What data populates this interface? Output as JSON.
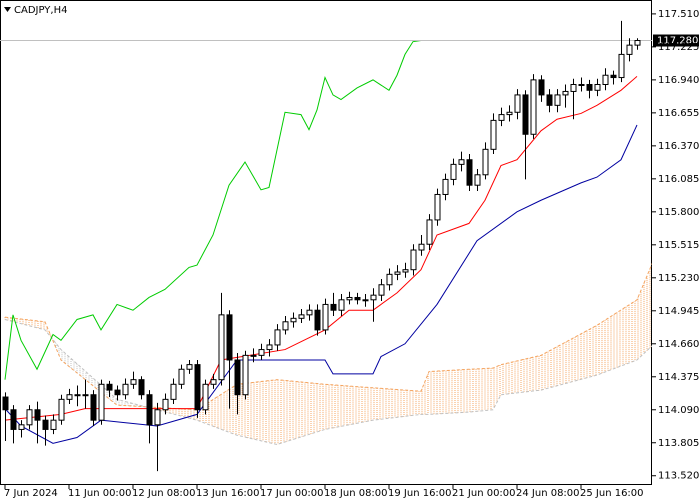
{
  "chart_data": {
    "type": "candlestick",
    "title": "CADJPY,H4",
    "categories": [
      "7 Jun 2024",
      null,
      null,
      null,
      null,
      null,
      null,
      null,
      "11 Jun 00:00",
      null,
      null,
      null,
      null,
      null,
      null,
      null,
      "12 Jun 08:00",
      null,
      null,
      null,
      null,
      null,
      null,
      null,
      "13 Jun 16:00",
      null,
      null,
      null,
      null,
      null,
      null,
      null,
      "17 Jun 00:00",
      null,
      null,
      null,
      null,
      null,
      null,
      null,
      "18 Jun 08:00",
      null,
      null,
      null,
      null,
      null,
      null,
      null,
      "19 Jun 16:00",
      null,
      null,
      null,
      null,
      null,
      null,
      null,
      "21 Jun 00:00",
      null,
      null,
      null,
      null,
      null,
      null,
      null,
      "24 Jun 08:00",
      null,
      null,
      null,
      null,
      null,
      null,
      null,
      "25 Jun 16:00",
      null,
      null,
      null,
      null,
      null,
      null,
      null
    ],
    "open": [
      114.2,
      114.09,
      113.92,
      113.96,
      114.09,
      114.0,
      113.92,
      114.0,
      114.18,
      114.22,
      114.22,
      114.22,
      114.0,
      114.31,
      114.26,
      114.22,
      114.31,
      114.35,
      114.22,
      113.96,
      114.09,
      114.18,
      114.31,
      114.44,
      114.48,
      114.09,
      114.31,
      114.35,
      114.91,
      114.52,
      114.22,
      114.56,
      114.56,
      114.61,
      114.65,
      114.78,
      114.85,
      114.88,
      114.91,
      114.95,
      114.78,
      115.0,
      114.95,
      115.04,
      115.06,
      115.04,
      115.04,
      115.08,
      115.17,
      115.26,
      115.28,
      115.3,
      115.47,
      115.52,
      115.73,
      115.95,
      116.08,
      116.21,
      116.25,
      116.03,
      116.12,
      116.34,
      116.59,
      116.64,
      116.66,
      116.81,
      116.47,
      116.94,
      116.81,
      116.72,
      116.81,
      116.84,
      116.9,
      116.9,
      116.85,
      116.9,
      116.98,
      116.96,
      117.16,
      117.24
    ],
    "high": [
      114.24,
      114.13,
      114.0,
      114.13,
      114.16,
      114.04,
      114.05,
      114.22,
      114.27,
      114.3,
      114.35,
      114.26,
      114.35,
      114.34,
      114.3,
      114.36,
      114.42,
      114.38,
      114.26,
      114.15,
      114.23,
      114.36,
      114.48,
      114.52,
      114.52,
      114.35,
      114.4,
      115.1,
      114.95,
      114.58,
      114.6,
      114.62,
      114.66,
      114.7,
      114.83,
      114.9,
      114.93,
      114.96,
      115.0,
      115.0,
      115.05,
      115.1,
      115.09,
      115.11,
      115.1,
      115.09,
      115.14,
      115.22,
      115.31,
      115.34,
      115.36,
      115.52,
      115.6,
      115.78,
      116.0,
      116.13,
      116.26,
      116.32,
      116.3,
      116.17,
      116.4,
      116.65,
      116.7,
      116.72,
      116.86,
      116.85,
      116.99,
      116.98,
      116.86,
      116.86,
      116.9,
      116.95,
      116.96,
      116.94,
      116.95,
      117.04,
      117.02,
      117.45,
      117.3,
      117.3
    ],
    "low": [
      113.82,
      113.8,
      113.85,
      113.92,
      113.8,
      113.78,
      113.88,
      113.96,
      114.14,
      114.12,
      114.1,
      113.95,
      113.96,
      114.2,
      114.17,
      114.18,
      114.27,
      114.18,
      113.8,
      113.56,
      114.05,
      114.14,
      114.27,
      114.4,
      114.02,
      114.05,
      114.27,
      114.3,
      114.1,
      114.05,
      114.18,
      114.5,
      114.52,
      114.55,
      114.6,
      114.74,
      114.8,
      114.84,
      114.86,
      114.73,
      114.74,
      114.9,
      114.9,
      115.0,
      115.0,
      114.98,
      114.85,
      115.03,
      115.12,
      115.21,
      115.23,
      115.25,
      115.42,
      115.47,
      115.68,
      115.9,
      116.03,
      116.15,
      115.98,
      115.98,
      116.08,
      116.3,
      116.54,
      116.58,
      116.6,
      116.08,
      116.43,
      116.75,
      116.66,
      116.66,
      116.7,
      116.6,
      116.84,
      116.78,
      116.8,
      116.85,
      116.9,
      116.92,
      117.1,
      117.2
    ],
    "close": [
      114.09,
      113.92,
      113.96,
      114.09,
      114.0,
      113.92,
      114.0,
      114.18,
      114.22,
      114.22,
      114.22,
      114.0,
      114.31,
      114.26,
      114.22,
      114.31,
      114.35,
      114.22,
      113.96,
      114.09,
      114.18,
      114.31,
      114.44,
      114.48,
      114.09,
      114.31,
      114.35,
      114.91,
      114.52,
      114.22,
      114.56,
      114.56,
      114.61,
      114.65,
      114.78,
      114.85,
      114.88,
      114.91,
      114.95,
      114.78,
      115.0,
      114.95,
      115.04,
      115.06,
      115.04,
      115.04,
      115.08,
      115.17,
      115.26,
      115.28,
      115.3,
      115.47,
      115.52,
      115.73,
      115.95,
      116.08,
      116.21,
      116.25,
      116.03,
      116.12,
      116.34,
      116.59,
      116.64,
      116.66,
      116.81,
      116.47,
      116.94,
      116.81,
      116.72,
      116.81,
      116.84,
      116.9,
      116.9,
      116.85,
      116.9,
      116.98,
      116.96,
      117.16,
      117.24,
      117.28
    ],
    "up_color": "#ffffff",
    "down_color": "#000000",
    "lines": [
      {
        "color": "#ff0000",
        "x": [
          0,
          7,
          10,
          17,
          24,
          27,
          35,
          40,
          43,
          46,
          49,
          52,
          54,
          58,
          60,
          62,
          64,
          67,
          69,
          72,
          74,
          77,
          79
        ],
        "values": [
          114.0,
          114.05,
          114.1,
          114.1,
          114.1,
          114.52,
          114.61,
          114.78,
          114.95,
          114.95,
          115.1,
          115.3,
          115.6,
          115.7,
          115.9,
          116.2,
          116.25,
          116.5,
          116.6,
          116.65,
          116.72,
          116.85,
          116.97
        ]
      },
      {
        "color": "#0000a0",
        "x": [
          0,
          2,
          6,
          9,
          12,
          19,
          24,
          29,
          40,
          41,
          46,
          47,
          50,
          54,
          59,
          64,
          67,
          72,
          74,
          77,
          79
        ],
        "values": [
          114.1,
          113.95,
          113.8,
          113.85,
          114.0,
          113.95,
          114.05,
          114.52,
          114.52,
          114.4,
          114.4,
          114.55,
          114.66,
          115.0,
          115.55,
          115.8,
          115.9,
          116.05,
          116.1,
          116.25,
          116.55
        ]
      },
      {
        "color": "#00cc00",
        "x": [
          0,
          1,
          2,
          4,
          6,
          7,
          9,
          11,
          12,
          14,
          16,
          18,
          20,
          23,
          24,
          26,
          28,
          30,
          32,
          33,
          35,
          37,
          38,
          39,
          40,
          41,
          42,
          44,
          46,
          48,
          49,
          50,
          51,
          52
        ],
        "values": [
          114.35,
          114.91,
          114.69,
          114.44,
          114.74,
          114.69,
          114.87,
          114.91,
          114.78,
          115.0,
          114.95,
          115.06,
          115.13,
          115.32,
          115.34,
          115.6,
          116.03,
          116.23,
          115.99,
          116.01,
          116.66,
          116.64,
          116.51,
          116.68,
          116.96,
          116.81,
          116.77,
          116.87,
          116.94,
          116.85,
          116.98,
          117.16,
          117.27,
          117.28
        ]
      }
    ],
    "cloud": {
      "x": [
        0,
        5,
        7,
        14,
        24,
        29,
        34,
        40,
        46,
        52,
        53,
        58,
        61,
        62,
        67,
        74,
        79,
        81
      ],
      "span_a": [
        114.89,
        114.85,
        114.52,
        114.13,
        114.09,
        114.31,
        114.35,
        114.31,
        114.28,
        114.25,
        114.42,
        114.44,
        114.45,
        114.48,
        114.56,
        114.82,
        115.04,
        115.37
      ],
      "span_b": [
        114.87,
        114.78,
        114.61,
        114.18,
        114.0,
        113.87,
        113.79,
        113.92,
        114.0,
        114.05,
        114.05,
        114.07,
        114.09,
        114.22,
        114.26,
        114.39,
        114.52,
        114.65
      ],
      "color_a": "#f4a460",
      "color_b": "#c0c0c0"
    },
    "last_price": {
      "value": 117.28,
      "label": "117.280"
    },
    "ylim": [
      113.44,
      117.63
    ],
    "yticks": [
      {
        "value": 117.51,
        "label": "117.510"
      },
      117.225,
      {
        "value": 116.94,
        "label": "116.940"
      },
      116.655,
      {
        "value": 116.37,
        "label": "116.370"
      },
      116.085,
      {
        "value": 115.8,
        "label": "115.800"
      },
      115.515,
      {
        "value": 115.23,
        "label": "115.230"
      },
      114.945,
      {
        "value": 114.66,
        "label": "114.660"
      },
      114.375,
      {
        "value": 114.09,
        "label": "114.090"
      },
      113.805,
      {
        "value": 113.52,
        "label": "113.520"
      }
    ]
  }
}
